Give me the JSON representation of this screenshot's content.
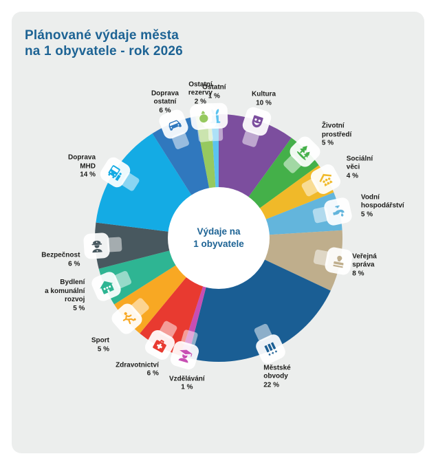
{
  "title": "Plánované výdaje města\nna 1 obyvatele - rok 2026",
  "center_label": "Výdaje na\n1 obyvatele",
  "colors": {
    "page_background": "#ffffff",
    "card_background": "#eceeed",
    "title_text": "#1d6394",
    "label_text": "#1d1d1b",
    "center_text": "#1d6394"
  },
  "chart_data": {
    "type": "pie",
    "title": "Plánované výdaje města na 1 obyvatele - rok 2026",
    "center_label": "Výdaje na 1 obyvatele",
    "units": "%",
    "direction": "clockwise",
    "start_angle_deg": -3.6,
    "donut": true,
    "legend_position": "around",
    "slices": [
      {
        "label": "Ostatní",
        "pct_label": "1 %",
        "value": 1,
        "color": "#5bc3ef",
        "icon": "magic-hat-icon"
      },
      {
        "label": "Kultura",
        "pct_label": "10 %",
        "value": 10,
        "color": "#7c4e9e",
        "icon": "theater-mask-icon"
      },
      {
        "label": "Životní\nprostředí",
        "pct_label": "5 %",
        "value": 5,
        "color": "#44b049",
        "icon": "trees-icon"
      },
      {
        "label": "Sociální\nvěci",
        "pct_label": "4 %",
        "value": 4,
        "color": "#f0b929",
        "icon": "family-shelter-icon"
      },
      {
        "label": "Vodní\nhospodářství",
        "pct_label": "5 %",
        "value": 5,
        "color": "#63b5dc",
        "icon": "faucet-icon"
      },
      {
        "label": "Veřejná\nspráva",
        "pct_label": "8 %",
        "value": 8,
        "color": "#bfae8c",
        "icon": "stamp-icon"
      },
      {
        "label": "Městské\nobvody",
        "pct_label": "22 %",
        "value": 22,
        "color": "#1a5e94",
        "icon": "city-districts-icon"
      },
      {
        "label": "Vzdělávání",
        "pct_label": "1 %",
        "value": 1,
        "color": "#c74eb3",
        "icon": "graduate-icon"
      },
      {
        "label": "Zdravotnictví",
        "pct_label": "6 %",
        "value": 6,
        "color": "#e83a30",
        "icon": "first-aid-kit-icon"
      },
      {
        "label": "Sport",
        "pct_label": "5 %",
        "value": 5,
        "color": "#f8a823",
        "icon": "runner-icon"
      },
      {
        "label": "Bydlení\na komunální\nrozvoj",
        "pct_label": "5 %",
        "value": 5,
        "color": "#2eb593",
        "icon": "house-icon"
      },
      {
        "label": "Bezpečnost",
        "pct_label": "6 %",
        "value": 6,
        "color": "#48585f",
        "icon": "police-officer-icon"
      },
      {
        "label": "Doprava\nMHD",
        "pct_label": "14 %",
        "value": 14,
        "color": "#14abe4",
        "icon": "bus-icon"
      },
      {
        "label": "Doprava\nostatní",
        "pct_label": "6 %",
        "value": 6,
        "color": "#3078be",
        "icon": "car-icon"
      },
      {
        "label": "Ostatní\nrezervy",
        "pct_label": "2 %",
        "value": 2,
        "color": "#96c95f",
        "icon": "money-bag-icon"
      }
    ]
  }
}
